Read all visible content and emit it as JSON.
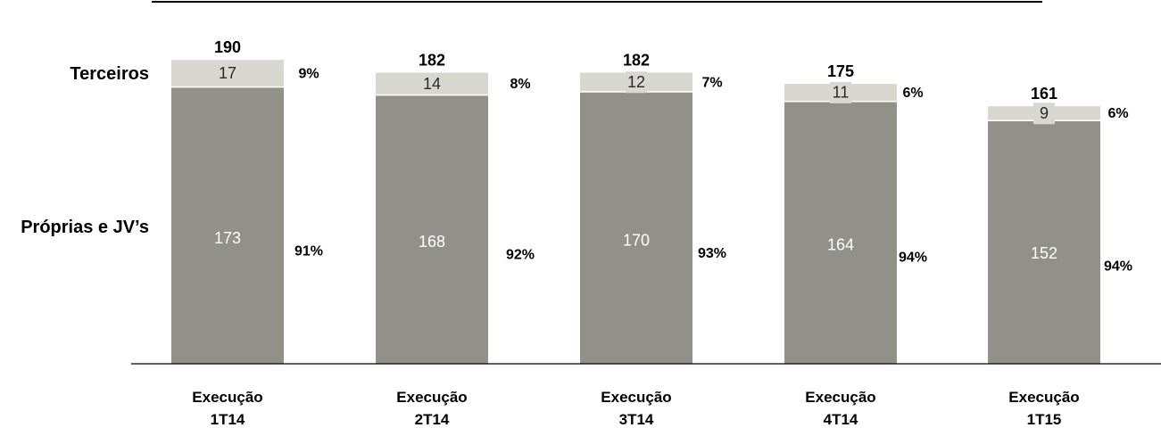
{
  "chart_data": {
    "type": "bar",
    "stacked": true,
    "title": "",
    "xlabel": "",
    "ylabel": "",
    "ylim": [
      0,
      200
    ],
    "grid": false,
    "legend": "left",
    "categories": [
      [
        "Execução",
        "1T14"
      ],
      [
        "Execução",
        "2T14"
      ],
      [
        "Execução",
        "3T14"
      ],
      [
        "Execução",
        "4T14"
      ],
      [
        "Execução",
        "1T15"
      ]
    ],
    "series": [
      {
        "name": "Próprias e JV’s",
        "color": "#929189",
        "label_color": "#ffffff",
        "values": [
          173,
          168,
          170,
          164,
          152
        ],
        "percent_labels": [
          "91%",
          "92%",
          "93%",
          "94%",
          "94%"
        ]
      },
      {
        "name": "Terceiros",
        "color": "#d8d8d0",
        "label_color": "#2a2a2a",
        "values": [
          17,
          14,
          12,
          11,
          9
        ],
        "percent_labels": [
          "9%",
          "8%",
          "7%",
          "6%",
          "6%"
        ]
      }
    ],
    "totals": [
      190,
      182,
      182,
      175,
      161
    ]
  }
}
